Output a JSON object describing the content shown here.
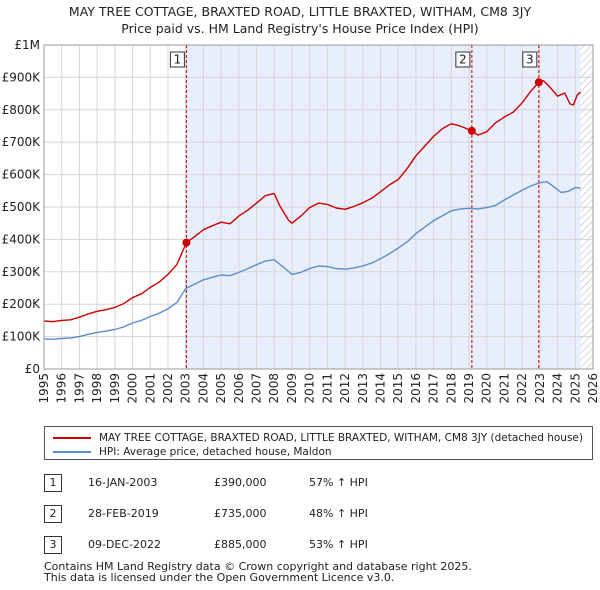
{
  "chart_data": {
    "type": "line",
    "title": "MAY TREE COTTAGE, BRAXTED ROAD, LITTLE BRAXTED, WITHAM, CM8 3JY",
    "subtitle": "Price paid vs. HM Land Registry's House Price Index (HPI)",
    "xlim": [
      1995,
      2026
    ],
    "ylim": [
      0,
      1000000
    ],
    "x_ticks": [
      1995,
      1996,
      1997,
      1998,
      1999,
      2000,
      2001,
      2002,
      2003,
      2004,
      2005,
      2006,
      2007,
      2008,
      2009,
      2010,
      2011,
      2012,
      2013,
      2014,
      2015,
      2016,
      2017,
      2018,
      2019,
      2020,
      2021,
      2022,
      2023,
      2024,
      2025,
      2026
    ],
    "x_tick_labels": [
      "1995",
      "1996",
      "1997",
      "1998",
      "1999",
      "2000",
      "2001",
      "2002",
      "2003",
      "2004",
      "2005",
      "2006",
      "2007",
      "2008",
      "2009",
      "2010",
      "2011",
      "2012",
      "2013",
      "2014",
      "2015",
      "2016",
      "2017",
      "2018",
      "2019",
      "2020",
      "2021",
      "2022",
      "2023",
      "2024",
      "2025",
      "2026"
    ],
    "y_ticks": [
      0,
      100000,
      200000,
      300000,
      400000,
      500000,
      600000,
      700000,
      800000,
      900000,
      1000000
    ],
    "y_tick_labels": [
      "£0",
      "£100K",
      "£200K",
      "£300K",
      "£400K",
      "£500K",
      "£600K",
      "£700K",
      "£800K",
      "£900K",
      "£1M"
    ],
    "grid": true,
    "shaded_period": [
      2003.04,
      2025.3
    ],
    "hatched_from": 2025.3,
    "series": [
      {
        "name": "MAY TREE COTTAGE, BRAXTED ROAD, LITTLE BRAXTED, WITHAM, CM8 3JY (detached house)",
        "color": "#cc0000",
        "x": [
          1995,
          1995.5,
          1996,
          1996.5,
          1997,
          1997.5,
          1998,
          1998.5,
          1999,
          1999.5,
          2000,
          2000.5,
          2001,
          2001.5,
          2002,
          2002.5,
          2003.04,
          2003.5,
          2004,
          2004.5,
          2005,
          2005.5,
          2006,
          2006.5,
          2007,
          2007.5,
          2008,
          2008.3,
          2008.8,
          2009,
          2009.5,
          2010,
          2010.5,
          2011,
          2011.5,
          2012,
          2012.5,
          2013,
          2013.5,
          2014,
          2014.5,
          2015,
          2015.5,
          2016,
          2016.5,
          2017,
          2017.5,
          2018,
          2018.5,
          2019.16,
          2019.5,
          2020,
          2020.5,
          2021,
          2021.5,
          2022,
          2022.5,
          2022.94,
          2023.2,
          2023.6,
          2024,
          2024.4,
          2024.7,
          2024.9,
          2025.1,
          2025.3
        ],
        "values": [
          148000,
          146000,
          150000,
          152000,
          160000,
          170000,
          178000,
          183000,
          190000,
          202000,
          220000,
          232000,
          252000,
          268000,
          292000,
          322000,
          390000,
          408000,
          430000,
          442000,
          453000,
          448000,
          472000,
          490000,
          512000,
          535000,
          542000,
          505000,
          460000,
          450000,
          472000,
          498000,
          512000,
          508000,
          497000,
          493000,
          502000,
          513000,
          527000,
          547000,
          568000,
          585000,
          618000,
          658000,
          688000,
          718000,
          742000,
          757000,
          750000,
          735000,
          722000,
          732000,
          760000,
          778000,
          793000,
          822000,
          858000,
          885000,
          890000,
          868000,
          842000,
          852000,
          818000,
          815000,
          845000,
          855000
        ]
      },
      {
        "name": "HPI: Average price, detached house, Maldon",
        "color": "#5b8ec9",
        "x": [
          1995,
          1995.5,
          1996,
          1996.5,
          1997,
          1997.5,
          1998,
          1998.5,
          1999,
          1999.5,
          2000,
          2000.5,
          2001,
          2001.5,
          2002,
          2002.5,
          2003,
          2003.5,
          2004,
          2004.5,
          2005,
          2005.5,
          2006,
          2006.5,
          2007,
          2007.5,
          2008,
          2008.5,
          2009,
          2009.5,
          2010,
          2010.5,
          2011,
          2011.5,
          2012,
          2012.5,
          2013,
          2013.5,
          2014,
          2014.5,
          2015,
          2015.5,
          2016,
          2016.5,
          2017,
          2017.5,
          2018,
          2018.5,
          2019,
          2019.5,
          2020,
          2020.5,
          2021,
          2021.5,
          2022,
          2022.5,
          2023,
          2023.4,
          2023.8,
          2024.2,
          2024.6,
          2025,
          2025.3
        ],
        "values": [
          93000,
          92000,
          94000,
          96000,
          100000,
          107000,
          113000,
          117000,
          122000,
          130000,
          142000,
          150000,
          162000,
          172000,
          186000,
          205000,
          248000,
          262000,
          275000,
          283000,
          290000,
          288000,
          298000,
          310000,
          322000,
          333000,
          337000,
          315000,
          292000,
          298000,
          310000,
          318000,
          316000,
          310000,
          308000,
          312000,
          318000,
          327000,
          340000,
          356000,
          373000,
          392000,
          418000,
          438000,
          458000,
          473000,
          488000,
          494000,
          496000,
          494000,
          498000,
          505000,
          522000,
          537000,
          552000,
          565000,
          575000,
          578000,
          562000,
          545000,
          548000,
          560000,
          558000
        ]
      }
    ],
    "sales": [
      {
        "label": "1",
        "x": 2003.04,
        "value": 390000,
        "date": "16-JAN-2003",
        "price": "£390,000",
        "hpi": "57% ↑ HPI"
      },
      {
        "label": "2",
        "x": 2019.16,
        "value": 735000,
        "date": "28-FEB-2019",
        "price": "£735,000",
        "hpi": "48% ↑ HPI"
      },
      {
        "label": "3",
        "x": 2022.94,
        "value": 885000,
        "date": "09-DEC-2022",
        "price": "£885,000",
        "hpi": "53% ↑ HPI"
      }
    ],
    "legend_location": "below"
  },
  "legend": {
    "property_label": "MAY TREE COTTAGE, BRAXTED ROAD, LITTLE BRAXTED, WITHAM, CM8 3JY (detached house)",
    "hpi_label": "HPI: Average price, detached house, Maldon",
    "property_color": "#cc0000",
    "hpi_color": "#5b8ec9"
  },
  "footer": {
    "line1": "Contains HM Land Registry data © Crown copyright and database right 2025.",
    "line2": "This data is licensed under the Open Government Licence v3.0."
  }
}
